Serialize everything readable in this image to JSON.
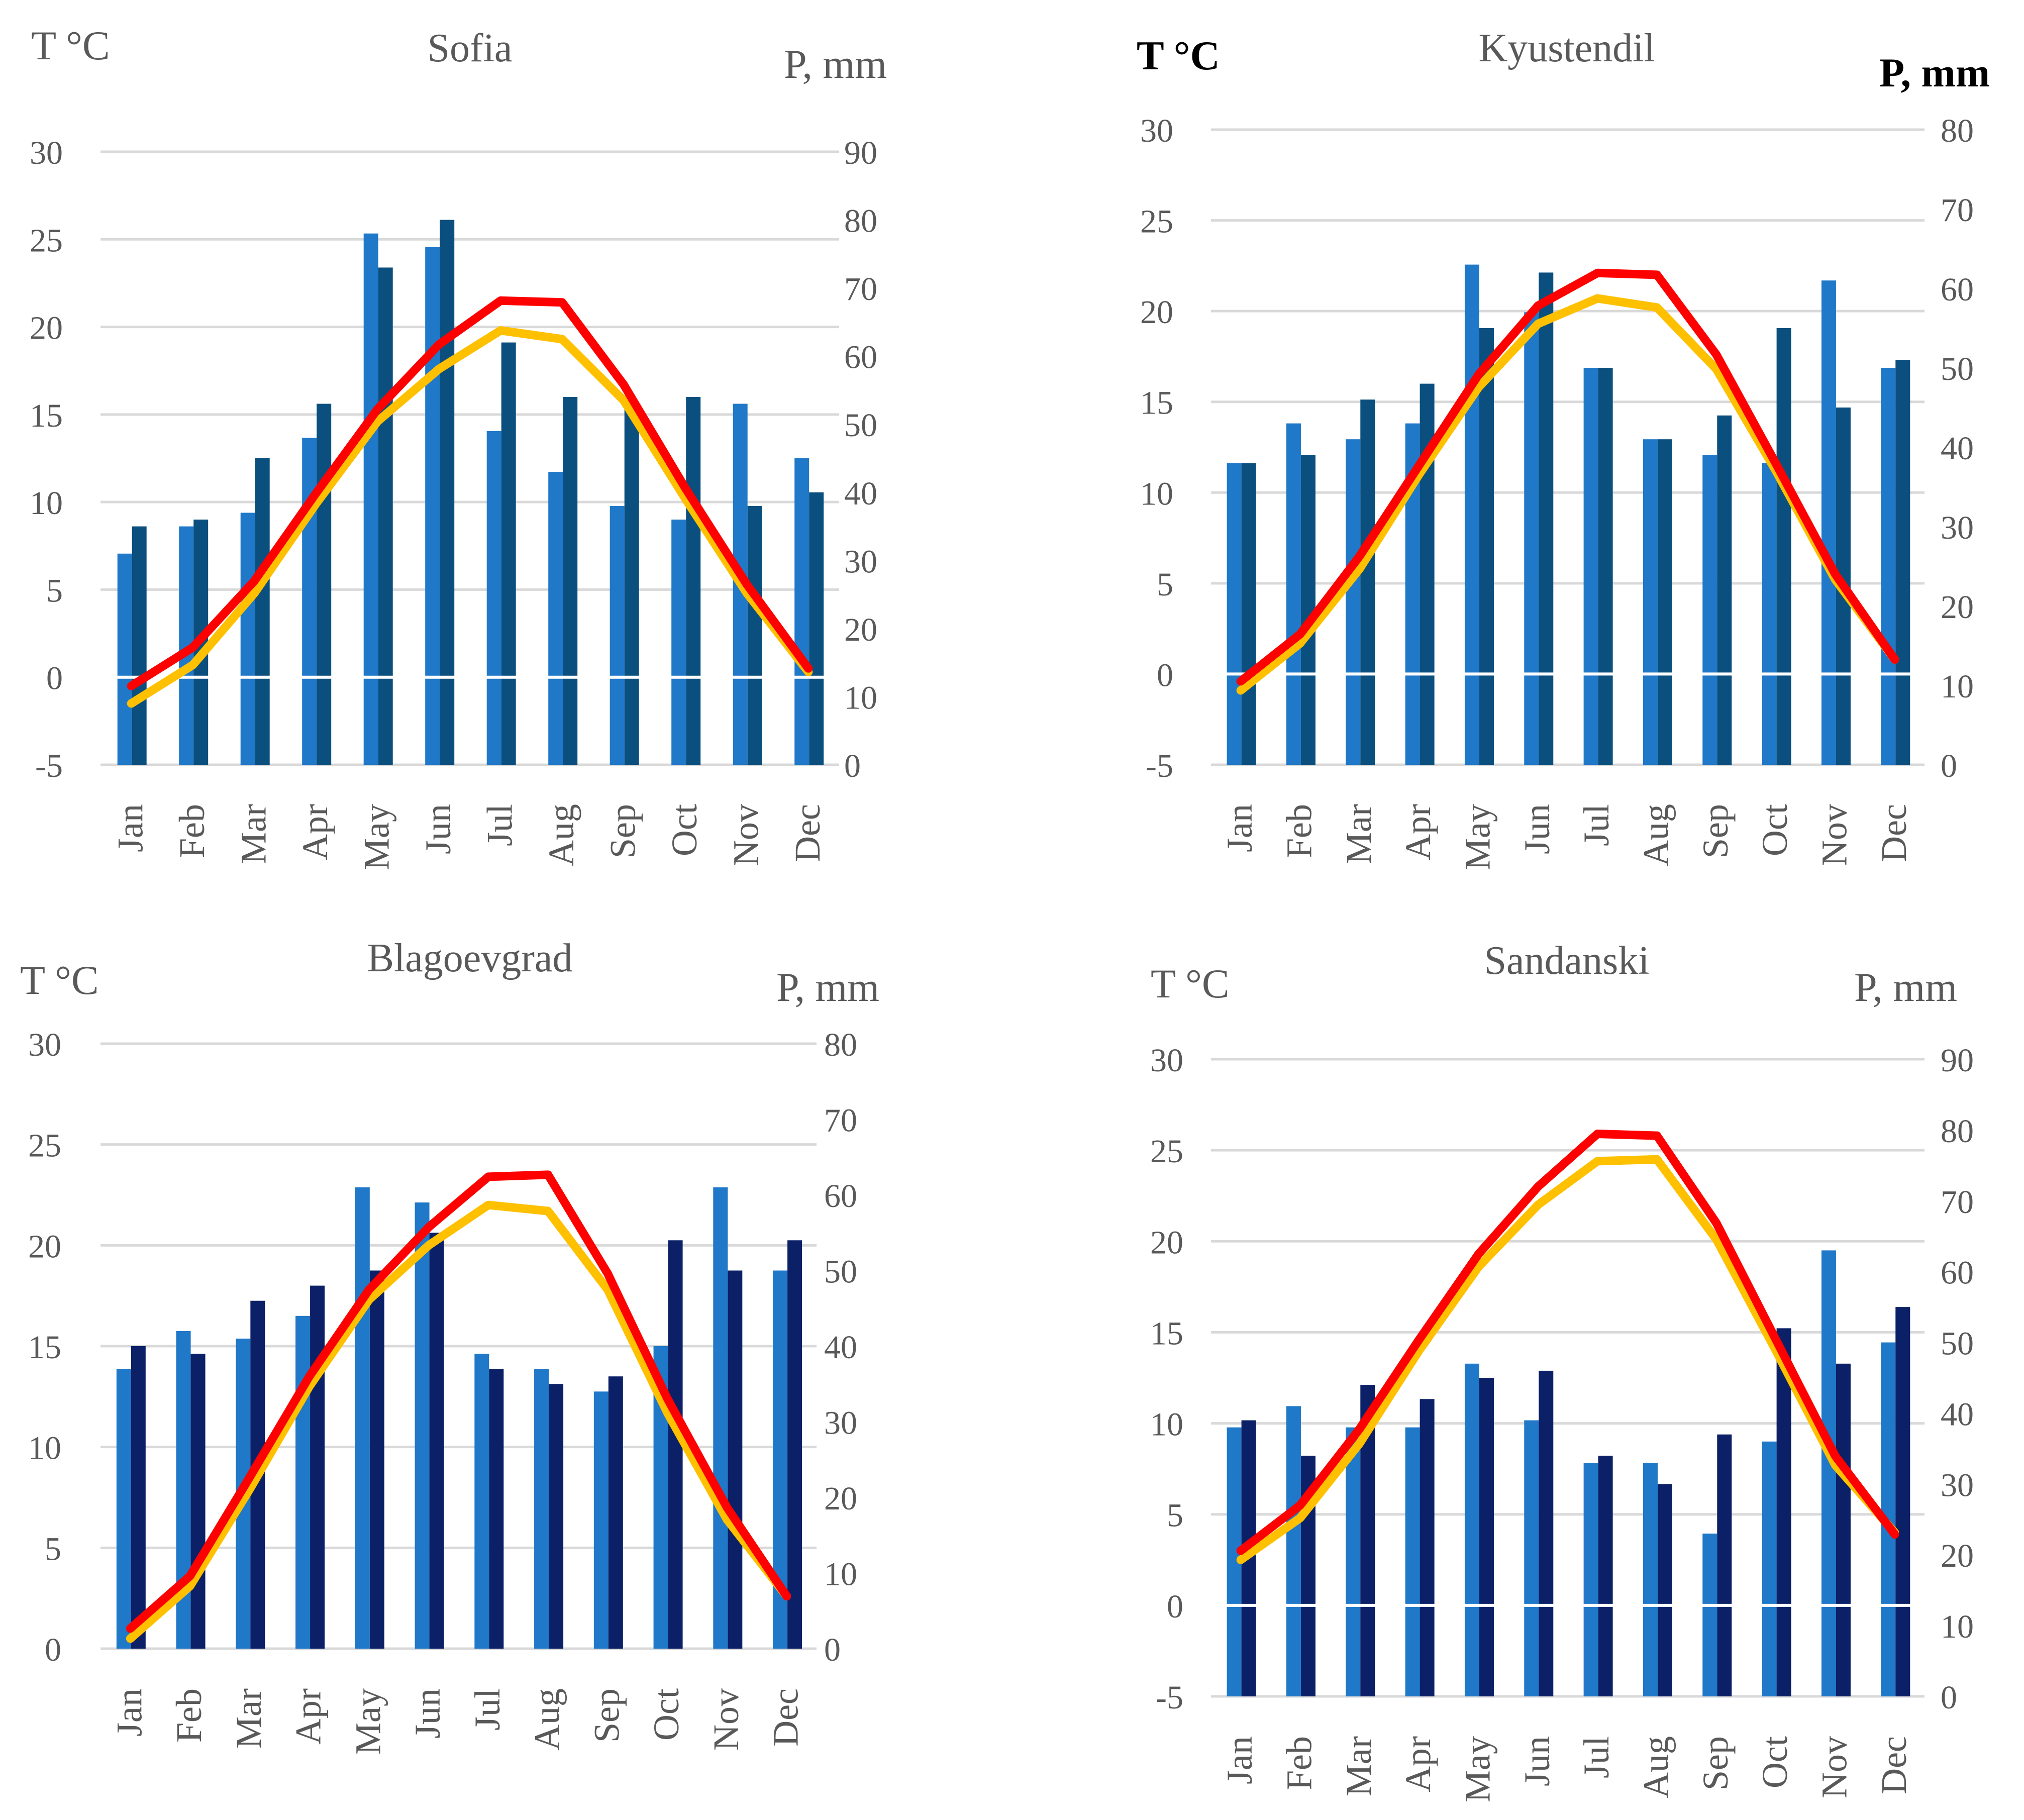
{
  "colors": {
    "bar_light": "#1f78c8",
    "bar_dark_a": "#0b4f7e",
    "bar_dark_b": "#0b2066",
    "line_red": "#ff0000",
    "line_yellow": "#ffc000"
  },
  "chart_data": [
    {
      "type": "bar+line",
      "title": "Sofia",
      "ylabel_left": "T °C",
      "ylabel_right": "P, mm",
      "categories": [
        "Jan",
        "Feb",
        "Mar",
        "Apr",
        "May",
        "Jun",
        "Jul",
        "Aug",
        "Sep",
        "Oct",
        "Nov",
        "Dec"
      ],
      "ylim_left": [
        -5,
        30
      ],
      "yticks_left": [
        -5,
        0,
        5,
        10,
        15,
        20,
        25,
        30
      ],
      "ylim_right": [
        0,
        90
      ],
      "yticks_right": [
        0,
        10,
        20,
        30,
        40,
        50,
        60,
        70,
        80,
        90
      ],
      "precip_series": [
        {
          "name": "Precipitation (light)",
          "axis": "right",
          "values": [
            31,
            35,
            37,
            48,
            78,
            76,
            49,
            43,
            38,
            36,
            53,
            45
          ]
        },
        {
          "name": "Precipitation (dark)",
          "axis": "right",
          "values": [
            35,
            36,
            45,
            53,
            73,
            80,
            62,
            54,
            53,
            54,
            38,
            40
          ]
        }
      ],
      "temp_series": [
        {
          "name": "Temperature (red)",
          "axis": "left",
          "values": [
            -0.5,
            1.7,
            5.5,
            10.5,
            15.3,
            19.0,
            21.5,
            21.4,
            16.7,
            10.8,
            5.3,
            0.5
          ]
        },
        {
          "name": "Temperature (yellow)",
          "axis": "left",
          "values": [
            -1.5,
            0.7,
            4.8,
            9.9,
            14.6,
            17.6,
            19.8,
            19.3,
            15.8,
            10.2,
            4.8,
            0.3
          ]
        }
      ]
    },
    {
      "type": "bar+line",
      "title": "Kyustendil",
      "ylabel_left": "T °C",
      "ylabel_right": "P, mm",
      "ylabel_bold": true,
      "categories": [
        "Jan",
        "Feb",
        "Mar",
        "Apr",
        "May",
        "Jun",
        "Jul",
        "Aug",
        "Sep",
        "Oct",
        "Nov",
        "Dec"
      ],
      "ylim_left": [
        -5,
        30
      ],
      "yticks_left": [
        -5,
        0,
        5,
        10,
        15,
        20,
        25,
        30
      ],
      "ylim_right": [
        0,
        80
      ],
      "yticks_right": [
        0,
        10,
        20,
        30,
        40,
        50,
        60,
        70,
        80
      ],
      "precip_series": [
        {
          "name": "Precipitation (light)",
          "axis": "right",
          "values": [
            38,
            43,
            41,
            43,
            63,
            57,
            50,
            41,
            39,
            38,
            61,
            50
          ]
        },
        {
          "name": "Precipitation (dark)",
          "axis": "right",
          "values": [
            38,
            39,
            46,
            48,
            55,
            62,
            50,
            41,
            44,
            55,
            45,
            51
          ]
        }
      ],
      "temp_series": [
        {
          "name": "Temperature (red)",
          "axis": "left",
          "values": [
            -0.4,
            2.2,
            6.5,
            11.5,
            16.5,
            20.3,
            22.1,
            22.0,
            17.6,
            11.6,
            5.5,
            0.8
          ]
        },
        {
          "name": "Temperature (yellow)",
          "axis": "left",
          "values": [
            -0.9,
            1.7,
            5.8,
            11.0,
            15.8,
            19.3,
            20.7,
            20.2,
            16.8,
            11.2,
            5.2,
            0.8
          ]
        }
      ]
    },
    {
      "type": "bar+line",
      "title": "Blagoevgrad",
      "ylabel_left": "T °C",
      "ylabel_right": "P, mm",
      "categories": [
        "Jan",
        "Feb",
        "Mar",
        "Apr",
        "May",
        "Jun",
        "Jul",
        "Aug",
        "Sep",
        "Oct",
        "Nov",
        "Dec"
      ],
      "ylim_left": [
        0,
        30
      ],
      "yticks_left": [
        0,
        5,
        10,
        15,
        20,
        25,
        30
      ],
      "ylim_right": [
        0,
        80
      ],
      "yticks_right": [
        0,
        10,
        20,
        30,
        40,
        50,
        60,
        70,
        80
      ],
      "precip_series": [
        {
          "name": "Precipitation (light)",
          "axis": "right",
          "values": [
            37,
            42,
            41,
            44,
            61,
            59,
            39,
            37,
            34,
            40,
            61,
            50
          ]
        },
        {
          "name": "Precipitation (dark)",
          "axis": "right",
          "values": [
            40,
            39,
            46,
            48,
            50,
            55,
            37,
            35,
            36,
            54,
            50,
            54
          ]
        }
      ],
      "temp_series": [
        {
          "name": "Temperature (red)",
          "axis": "left",
          "values": [
            1.0,
            3.6,
            8.5,
            13.5,
            17.8,
            20.9,
            23.4,
            23.5,
            18.6,
            12.4,
            7.0,
            2.6
          ]
        },
        {
          "name": "Temperature (yellow)",
          "axis": "left",
          "values": [
            0.5,
            3.1,
            7.9,
            13.0,
            17.3,
            20.0,
            22.0,
            21.7,
            17.8,
            11.7,
            6.4,
            2.6
          ]
        }
      ]
    },
    {
      "type": "bar+line",
      "title": "Sandanski",
      "ylabel_left": "T °C",
      "ylabel_right": "P, mm",
      "categories": [
        "Jan",
        "Feb",
        "Mar",
        "Apr",
        "May",
        "Jun",
        "Jul",
        "Aug",
        "Sep",
        "Oct",
        "Nov",
        "Dec"
      ],
      "ylim_left": [
        -5,
        30
      ],
      "yticks_left": [
        -5,
        0,
        5,
        10,
        15,
        20,
        25,
        30
      ],
      "ylim_right": [
        0,
        90
      ],
      "yticks_right": [
        0,
        10,
        20,
        30,
        40,
        50,
        60,
        70,
        80,
        90
      ],
      "precip_series": [
        {
          "name": "Precipitation (light)",
          "axis": "right",
          "values": [
            38,
            41,
            38,
            38,
            47,
            39,
            33,
            33,
            23,
            36,
            63,
            50
          ]
        },
        {
          "name": "Precipitation (dark)",
          "axis": "right",
          "values": [
            39,
            34,
            44,
            42,
            45,
            46,
            34,
            30,
            37,
            52,
            47,
            55
          ]
        }
      ],
      "temp_series": [
        {
          "name": "Temperature (red)",
          "axis": "left",
          "values": [
            3.0,
            5.5,
            9.7,
            14.6,
            19.3,
            23.0,
            25.9,
            25.8,
            21.0,
            14.6,
            8.2,
            3.9
          ]
        },
        {
          "name": "Temperature (yellow)",
          "axis": "left",
          "values": [
            2.5,
            4.8,
            8.9,
            14.0,
            18.6,
            22.0,
            24.4,
            24.5,
            20.1,
            14.0,
            7.7,
            4.0
          ]
        }
      ]
    }
  ]
}
